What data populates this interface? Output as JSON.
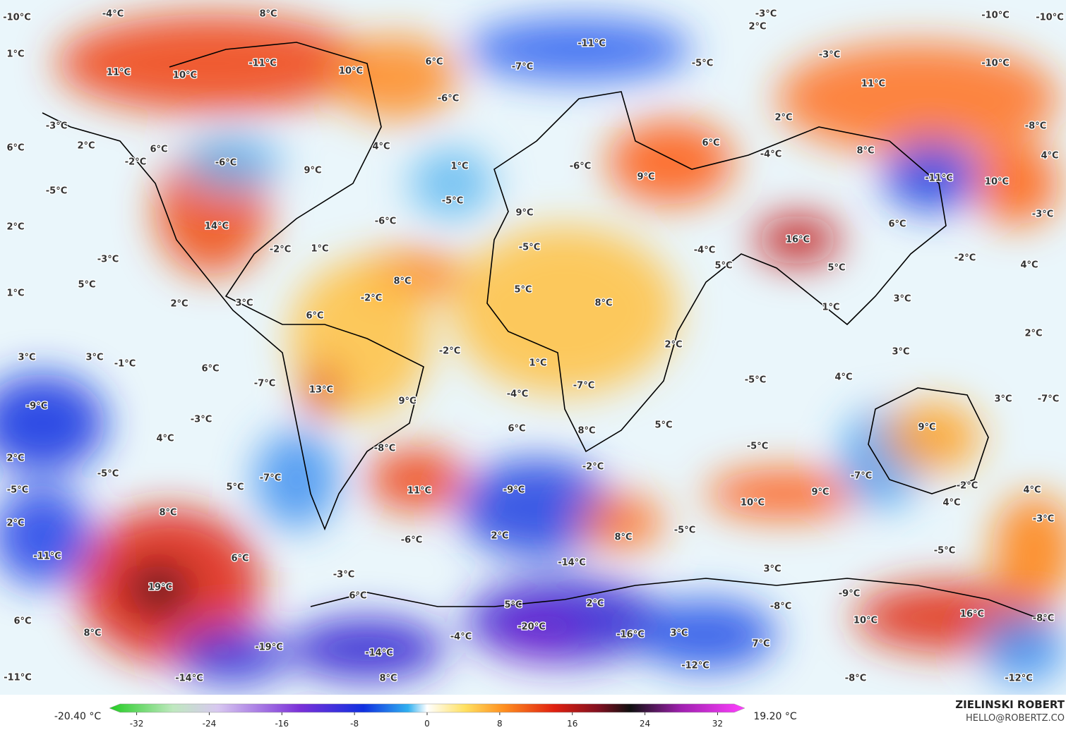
{
  "map": {
    "labels": [
      "-10°C",
      "-4°C",
      "8°C",
      "-3°C",
      "2°C",
      "-10°C",
      "-10°C",
      "1°C",
      "11°C",
      "10°C",
      "-11°C",
      "10°C",
      "6°C",
      "-11°C",
      "-7°C",
      "-5°C",
      "-3°C",
      "-10°C",
      "11°C",
      "-6°C",
      "-3°C",
      "6°C",
      "2°C",
      "6°C",
      "-2°C",
      "-6°C",
      "9°C",
      "4°C",
      "1°C",
      "6°C",
      "2°C",
      "-4°C",
      "8°C",
      "-8°C",
      "4°C",
      "-5°C",
      "-6°C",
      "9°C",
      "-11°C",
      "10°C",
      "-5°C",
      "-6°C",
      "9°C",
      "2°C",
      "14°C",
      "-3°C",
      "6°C",
      "-2°C",
      "1°C",
      "-5°C",
      "-4°C",
      "16°C",
      "-2°C",
      "4°C",
      "-3°C",
      "5°C",
      "5°C",
      "5°C",
      "1°C",
      "8°C",
      "5°C",
      "2°C",
      "3°C",
      "-2°C",
      "8°C",
      "3°C",
      "1°C",
      "2°C",
      "6°C",
      "2°C",
      "-2°C",
      "3°C",
      "3°C",
      "-1°C",
      "6°C",
      "1°C",
      "-5°C",
      "4°C",
      "3°C",
      "-7°C",
      "13°C",
      "-7°C",
      "-4°C",
      "9°C",
      "3°C",
      "-7°C",
      "-9°C",
      "-3°C",
      "5°C",
      "6°C",
      "8°C",
      "9°C",
      "4°C",
      "-8°C",
      "-5°C",
      "2°C",
      "-5°C",
      "-7°C",
      "-2°C",
      "-5°C",
      "5°C",
      "-7°C",
      "11°C",
      "-9°C",
      "9°C",
      "10°C",
      "-2°C",
      "4°C",
      "4°C",
      "2°C",
      "8°C",
      "2°C",
      "-6°C",
      "-5°C",
      "8°C",
      "-3°C",
      "-5°C",
      "-11°C",
      "6°C",
      "-14°C",
      "3°C",
      "19°C",
      "-3°C",
      "6°C",
      "-9°C",
      "5°C",
      "2°C",
      "-8°C",
      "16°C",
      "6°C",
      "8°C",
      "-4°C",
      "-20°C",
      "-16°C",
      "3°C",
      "10°C",
      "-8°C",
      "7°C",
      "-19°C",
      "-14°C",
      "-12°C",
      "-11°C",
      "-14°C",
      "8°C",
      "-8°C",
      "-12°C"
    ]
  },
  "legend": {
    "min_label": "-20.40 °C",
    "max_label": "19.20 °C",
    "lim": [
      -35,
      35
    ],
    "ticks": [
      -32,
      -24,
      -16,
      -8,
      0,
      8,
      16,
      24,
      32
    ]
  },
  "credit": {
    "author": "ZIELINSKI ROBERT",
    "email": "HELLO@ROBERTZ.CO"
  }
}
